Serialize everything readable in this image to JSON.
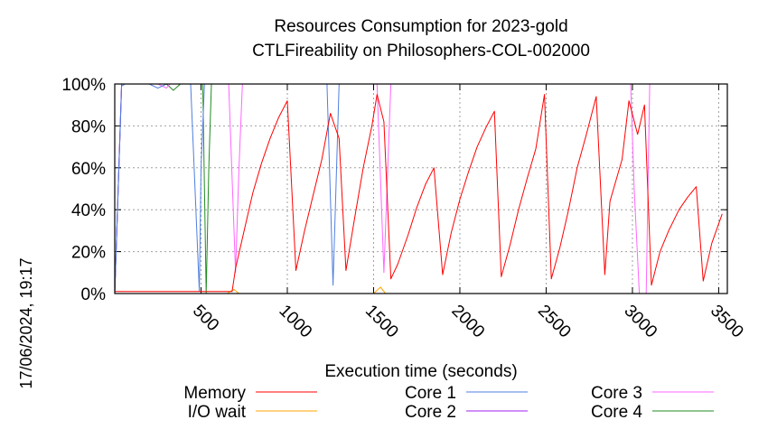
{
  "chart_data": {
    "type": "line",
    "title": "Resources Consumption for 2023-gold",
    "subtitle": "CTLFireability on Philosophers-COL-002000",
    "xlabel": "Execution time (seconds)",
    "side_label": "17/06/2024, 19:17",
    "xlim": [
      0,
      3550
    ],
    "ylim": [
      0,
      100
    ],
    "x_ticks": [
      500,
      1000,
      1500,
      2000,
      2500,
      3000,
      3500
    ],
    "x_tick_labels": [
      "500",
      "1000",
      "1500",
      "2000",
      "2500",
      "3000",
      "3500"
    ],
    "y_ticks": [
      0,
      20,
      40,
      60,
      80,
      100
    ],
    "y_tick_labels": [
      "0%",
      "20%",
      "40%",
      "60%",
      "80%",
      "100%"
    ],
    "grid": true,
    "legend_position": "bottom",
    "series": [
      {
        "name": "Memory",
        "color": "#ff0000",
        "points": [
          [
            0,
            1
          ],
          [
            100,
            1
          ],
          [
            300,
            1
          ],
          [
            500,
            1
          ],
          [
            600,
            1
          ],
          [
            680,
            1
          ],
          [
            700,
            12
          ],
          [
            750,
            30
          ],
          [
            800,
            48
          ],
          [
            850,
            62
          ],
          [
            900,
            74
          ],
          [
            950,
            84
          ],
          [
            1000,
            92
          ],
          [
            1050,
            11
          ],
          [
            1100,
            30
          ],
          [
            1150,
            47
          ],
          [
            1200,
            64
          ],
          [
            1250,
            86
          ],
          [
            1300,
            74
          ],
          [
            1340,
            11
          ],
          [
            1390,
            36
          ],
          [
            1440,
            60
          ],
          [
            1490,
            80
          ],
          [
            1520,
            95
          ],
          [
            1560,
            82
          ],
          [
            1600,
            7
          ],
          [
            1640,
            14
          ],
          [
            1700,
            28
          ],
          [
            1750,
            41
          ],
          [
            1800,
            52
          ],
          [
            1850,
            60
          ],
          [
            1900,
            9
          ],
          [
            1950,
            29
          ],
          [
            2000,
            45
          ],
          [
            2050,
            58
          ],
          [
            2100,
            70
          ],
          [
            2150,
            79
          ],
          [
            2200,
            87
          ],
          [
            2240,
            8
          ],
          [
            2290,
            23
          ],
          [
            2340,
            40
          ],
          [
            2390,
            55
          ],
          [
            2440,
            69
          ],
          [
            2490,
            95
          ],
          [
            2530,
            7
          ],
          [
            2580,
            22
          ],
          [
            2630,
            40
          ],
          [
            2680,
            60
          ],
          [
            2730,
            75
          ],
          [
            2790,
            94
          ],
          [
            2840,
            9
          ],
          [
            2870,
            44
          ],
          [
            2940,
            64
          ],
          [
            2980,
            92
          ],
          [
            3030,
            76
          ],
          [
            3070,
            90
          ],
          [
            3110,
            4
          ],
          [
            3160,
            20
          ],
          [
            3210,
            30
          ],
          [
            3270,
            40
          ],
          [
            3320,
            46
          ],
          [
            3370,
            51
          ],
          [
            3410,
            6
          ],
          [
            3460,
            24
          ],
          [
            3520,
            38
          ]
        ]
      },
      {
        "name": "I/O wait",
        "color": "#ffa500",
        "points": [
          [
            0,
            0
          ],
          [
            650,
            0
          ],
          [
            690,
            2
          ],
          [
            720,
            0
          ],
          [
            1500,
            0
          ],
          [
            1540,
            3
          ],
          [
            1570,
            0
          ],
          [
            3550,
            0
          ]
        ]
      },
      {
        "name": "Core 1",
        "color": "#4f7fdf",
        "points": [
          [
            0,
            0
          ],
          [
            40,
            99
          ],
          [
            60,
            100
          ],
          [
            200,
            100
          ],
          [
            250,
            98
          ],
          [
            300,
            100
          ],
          [
            440,
            100
          ],
          [
            490,
            1
          ],
          [
            500,
            60
          ],
          [
            520,
            100
          ],
          [
            1230,
            100
          ],
          [
            1265,
            4
          ],
          [
            1300,
            100
          ],
          [
            3550,
            100
          ]
        ]
      },
      {
        "name": "Core 2",
        "color": "#a020f0",
        "points": [
          [
            0,
            0
          ],
          [
            40,
            100
          ],
          [
            3550,
            100
          ]
        ]
      },
      {
        "name": "Core 3",
        "color": "#ff66ff",
        "points": [
          [
            0,
            0
          ],
          [
            40,
            100
          ],
          [
            250,
            100
          ],
          [
            300,
            98
          ],
          [
            320,
            100
          ],
          [
            660,
            100
          ],
          [
            700,
            10
          ],
          [
            720,
            60
          ],
          [
            740,
            100
          ],
          [
            1520,
            100
          ],
          [
            1560,
            10
          ],
          [
            1600,
            100
          ],
          [
            2990,
            100
          ],
          [
            3010,
            50
          ],
          [
            3040,
            0
          ],
          [
            3080,
            0
          ],
          [
            3100,
            100
          ],
          [
            3550,
            100
          ]
        ]
      },
      {
        "name": "Core 4",
        "color": "#228b22",
        "points": [
          [
            0,
            0
          ],
          [
            40,
            100
          ],
          [
            300,
            100
          ],
          [
            340,
            97
          ],
          [
            380,
            100
          ],
          [
            510,
            100
          ],
          [
            530,
            0
          ],
          [
            545,
            60
          ],
          [
            560,
            100
          ],
          [
            3550,
            100
          ]
        ]
      }
    ]
  }
}
